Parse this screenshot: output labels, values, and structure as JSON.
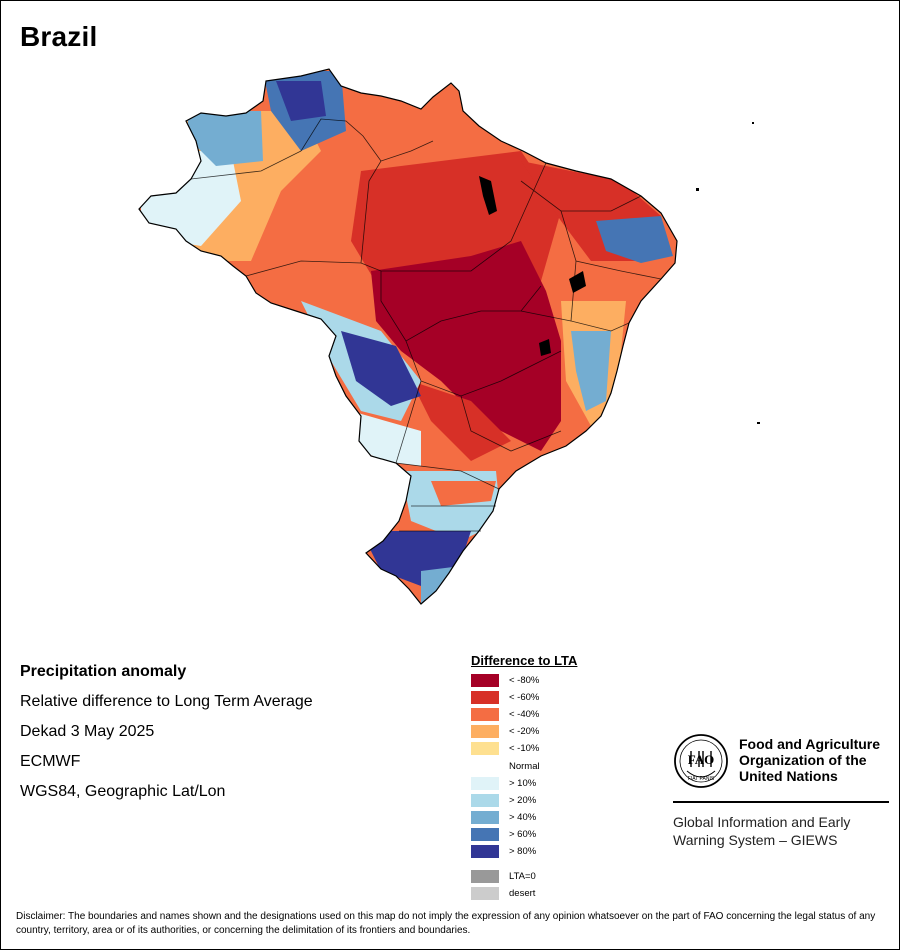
{
  "map": {
    "title": "Brazil",
    "info": {
      "heading": "Precipitation anomaly",
      "description": "Relative difference to Long Term Average",
      "period": "Dekad 3 May 2025",
      "source": "ECMWF",
      "projection": "WGS84, Geographic Lat/Lon"
    }
  },
  "legend": {
    "title": "Difference to LTA",
    "items": [
      {
        "label": "< -80%",
        "color": "#a50026"
      },
      {
        "label": "< -60%",
        "color": "#d73027"
      },
      {
        "label": "< -40%",
        "color": "#f46d43"
      },
      {
        "label": "< -20%",
        "color": "#fdae61"
      },
      {
        "label": "< -10%",
        "color": "#fee090"
      },
      {
        "label": "Normal",
        "color": "#ffffff"
      },
      {
        "label": "> 10%",
        "color": "#e0f3f8"
      },
      {
        "label": "> 20%",
        "color": "#abd9e9"
      },
      {
        "label": "> 40%",
        "color": "#74add1"
      },
      {
        "label": "> 60%",
        "color": "#4575b4"
      },
      {
        "label": "> 80%",
        "color": "#313695"
      }
    ],
    "extra": [
      {
        "label": "LTA=0",
        "color": "#999999"
      },
      {
        "label": "desert",
        "color": "#cccccc"
      }
    ]
  },
  "organization": {
    "logo_text": "FAO",
    "logo_motto": "FIAT PANIS",
    "name": "Food and Agriculture Organization of the United Nations",
    "program": "Global Information and Early Warning System – GIEWS"
  },
  "disclaimer": "Disclaimer: The boundaries and names shown and the designations used on this map do not imply the expression of any opinion whatsoever on the part of FAO concerning the legal status of any country, territory, area or of its authorities, or concerning the delimitation of its frontiers and boundaries."
}
